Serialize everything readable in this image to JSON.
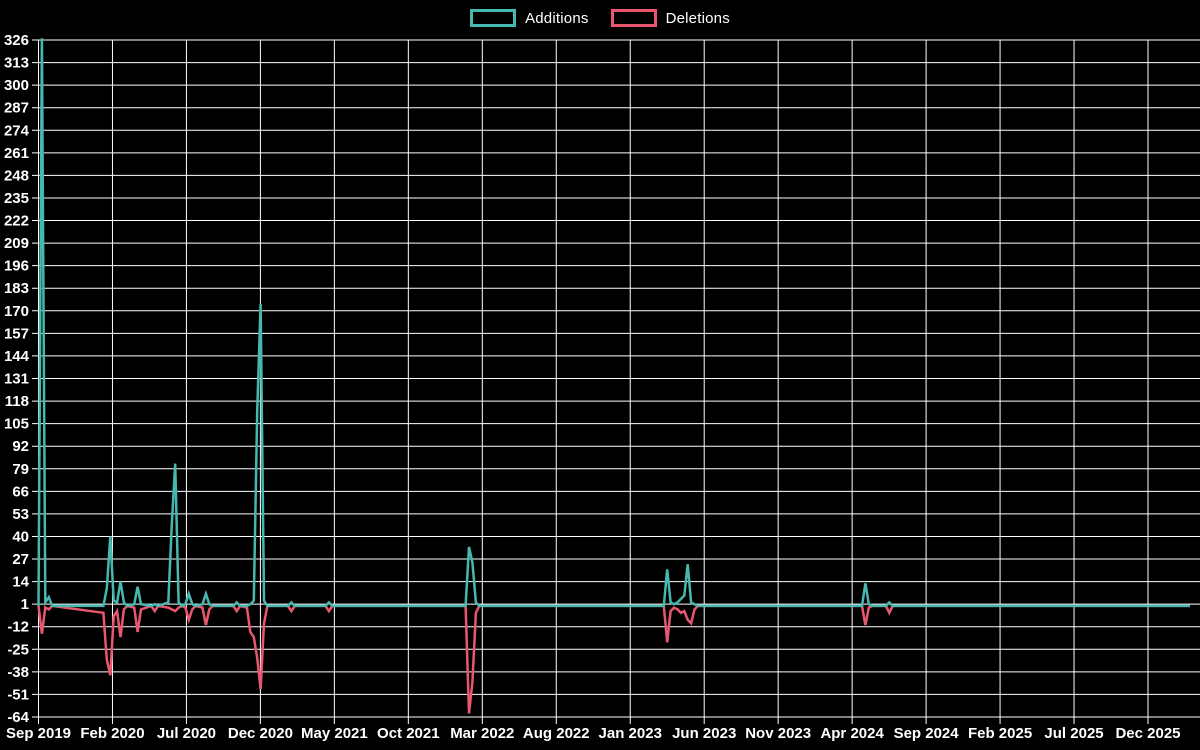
{
  "legend": {
    "items": [
      {
        "id": "additions",
        "label": "Additions",
        "color": "#45b8b0"
      },
      {
        "id": "deletions",
        "label": "Deletions",
        "color": "#e8566f"
      }
    ]
  },
  "colors": {
    "background": "#000000",
    "grid": "#ffffff",
    "axis_text": "#ffffff",
    "additions": "#45b8b0",
    "deletions": "#e8566f"
  },
  "chart_data": {
    "type": "line",
    "title": "",
    "xlabel": "",
    "ylabel": "",
    "grid": true,
    "legend_position": "top-center",
    "x_unit": "weeks since Sep 2019",
    "x_axis": {
      "tick_labels": [
        "Sep 2019",
        "Feb 2020",
        "Jul 2020",
        "Dec 2020",
        "May 2021",
        "Oct 2021",
        "Mar 2022",
        "Aug 2022",
        "Jan 2023",
        "Jun 2023",
        "Nov 2023",
        "Apr 2024",
        "Sep 2024",
        "Feb 2025",
        "Jul 2025",
        "Dec 2025"
      ],
      "total_weeks": 337
    },
    "y_axis": {
      "ticks": [
        326,
        313,
        300,
        287,
        274,
        261,
        248,
        235,
        222,
        209,
        196,
        183,
        170,
        157,
        144,
        131,
        118,
        105,
        92,
        79,
        66,
        53,
        40,
        27,
        14,
        1,
        -12,
        -25,
        -38,
        -51,
        -64
      ],
      "min": -64,
      "max": 326,
      "step": 13
    },
    "series": [
      {
        "name": "Additions",
        "color": "#45b8b0",
        "points": [
          [
            0,
            0
          ],
          [
            1,
            327
          ],
          [
            2,
            2
          ],
          [
            3,
            5
          ],
          [
            4,
            0
          ],
          [
            19,
            0
          ],
          [
            20,
            10
          ],
          [
            21,
            40
          ],
          [
            22,
            3
          ],
          [
            23,
            2
          ],
          [
            24,
            14
          ],
          [
            25,
            2
          ],
          [
            26,
            0
          ],
          [
            28,
            1
          ],
          [
            29,
            11
          ],
          [
            30,
            1
          ],
          [
            33,
            0
          ],
          [
            34,
            1
          ],
          [
            35,
            0
          ],
          [
            38,
            2
          ],
          [
            39,
            47
          ],
          [
            40,
            82
          ],
          [
            41,
            2
          ],
          [
            42,
            0
          ],
          [
            43,
            1
          ],
          [
            44,
            7
          ],
          [
            45,
            1
          ],
          [
            46,
            0
          ],
          [
            48,
            1
          ],
          [
            49,
            7
          ],
          [
            50,
            1
          ],
          [
            51,
            0
          ],
          [
            57,
            0
          ],
          [
            58,
            2
          ],
          [
            59,
            0
          ],
          [
            61,
            0
          ],
          [
            62,
            1
          ],
          [
            63,
            3
          ],
          [
            64,
            112
          ],
          [
            65,
            174
          ],
          [
            66,
            3
          ],
          [
            67,
            0
          ],
          [
            73,
            0
          ],
          [
            74,
            2
          ],
          [
            75,
            0
          ],
          [
            84,
            0
          ],
          [
            85,
            2
          ],
          [
            86,
            0
          ],
          [
            125,
            0
          ],
          [
            126,
            34
          ],
          [
            127,
            25
          ],
          [
            128,
            2
          ],
          [
            129,
            0
          ],
          [
            183,
            0
          ],
          [
            184,
            21
          ],
          [
            185,
            2
          ],
          [
            186,
            1
          ],
          [
            187,
            2
          ],
          [
            188,
            4
          ],
          [
            189,
            6
          ],
          [
            190,
            24
          ],
          [
            191,
            2
          ],
          [
            192,
            1
          ],
          [
            193,
            0
          ],
          [
            241,
            0
          ],
          [
            242,
            13
          ],
          [
            243,
            1
          ],
          [
            244,
            0
          ],
          [
            248,
            0
          ],
          [
            249,
            2
          ],
          [
            250,
            0
          ],
          [
            337,
            0
          ]
        ]
      },
      {
        "name": "Deletions",
        "color": "#e8566f",
        "points": [
          [
            0,
            0
          ],
          [
            1,
            -16
          ],
          [
            2,
            -1
          ],
          [
            3,
            -2
          ],
          [
            4,
            0
          ],
          [
            19,
            -4
          ],
          [
            20,
            -31
          ],
          [
            21,
            -40
          ],
          [
            22,
            -6
          ],
          [
            23,
            -3
          ],
          [
            24,
            -18
          ],
          [
            25,
            -2
          ],
          [
            26,
            0
          ],
          [
            28,
            -1
          ],
          [
            29,
            -15
          ],
          [
            30,
            -2
          ],
          [
            33,
            0
          ],
          [
            34,
            -3
          ],
          [
            35,
            0
          ],
          [
            38,
            -1
          ],
          [
            39,
            -2
          ],
          [
            40,
            -3
          ],
          [
            41,
            -1
          ],
          [
            42,
            0
          ],
          [
            43,
            -1
          ],
          [
            44,
            -8
          ],
          [
            45,
            -2
          ],
          [
            46,
            0
          ],
          [
            48,
            -1
          ],
          [
            49,
            -11
          ],
          [
            50,
            -2
          ],
          [
            51,
            0
          ],
          [
            57,
            0
          ],
          [
            58,
            -3
          ],
          [
            59,
            0
          ],
          [
            61,
            -1
          ],
          [
            62,
            -15
          ],
          [
            63,
            -18
          ],
          [
            64,
            -30
          ],
          [
            65,
            -48
          ],
          [
            66,
            -10
          ],
          [
            67,
            0
          ],
          [
            73,
            0
          ],
          [
            74,
            -3
          ],
          [
            75,
            0
          ],
          [
            84,
            0
          ],
          [
            85,
            -3
          ],
          [
            86,
            0
          ],
          [
            125,
            0
          ],
          [
            126,
            -62
          ],
          [
            127,
            -44
          ],
          [
            128,
            -4
          ],
          [
            129,
            0
          ],
          [
            183,
            0
          ],
          [
            184,
            -21
          ],
          [
            185,
            -3
          ],
          [
            186,
            -1
          ],
          [
            187,
            -2
          ],
          [
            188,
            -4
          ],
          [
            189,
            -3
          ],
          [
            190,
            -8
          ],
          [
            191,
            -10
          ],
          [
            192,
            -2
          ],
          [
            193,
            0
          ],
          [
            241,
            0
          ],
          [
            242,
            -11
          ],
          [
            243,
            -1
          ],
          [
            244,
            0
          ],
          [
            248,
            0
          ],
          [
            249,
            -4
          ],
          [
            250,
            0
          ],
          [
            337,
            0
          ]
        ]
      }
    ]
  }
}
